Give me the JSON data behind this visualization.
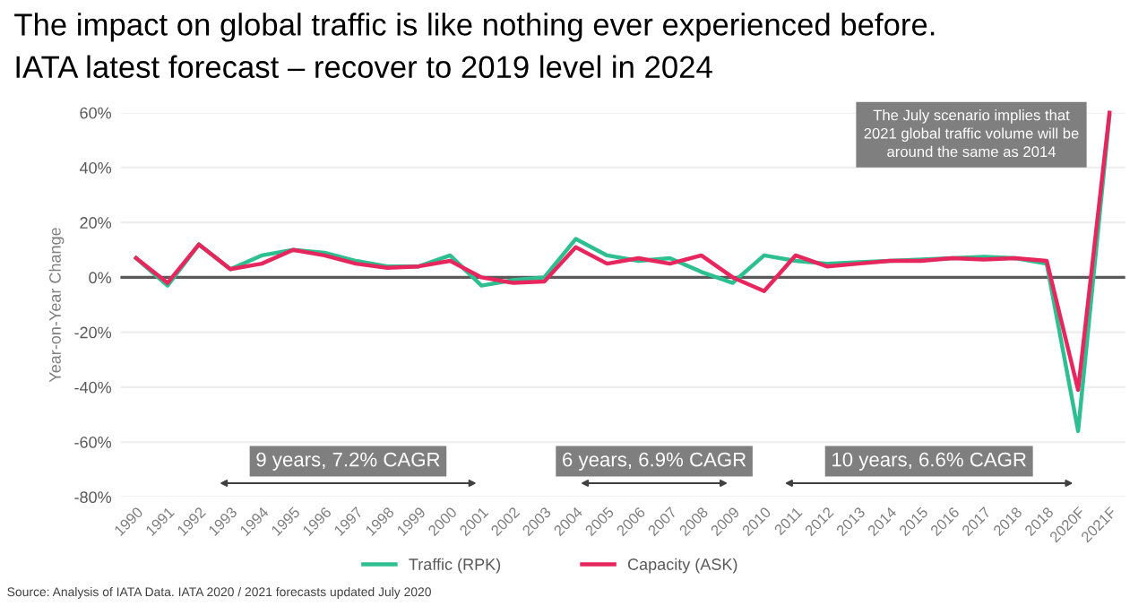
{
  "chart_data": {
    "type": "line",
    "title": "The impact on global traffic is like nothing ever experienced before.",
    "subtitle": "IATA latest forecast – recover to 2019 level in 2024",
    "ylabel": "Year-on-Year Change",
    "categories": [
      "1990",
      "1991",
      "1992",
      "1993",
      "1994",
      "1995",
      "1996",
      "1997",
      "1998",
      "1999",
      "2000",
      "2001",
      "2002",
      "2003",
      "2004",
      "2005",
      "2006",
      "2007",
      "2008",
      "2009",
      "2010",
      "2011",
      "2012",
      "2013",
      "2014",
      "2015",
      "2016",
      "2017",
      "2018",
      "2018",
      "2020F",
      "2021F"
    ],
    "series": [
      {
        "name": "Traffic (RPK)",
        "color": "#2ebf91",
        "values": [
          7,
          -3,
          12,
          3,
          8,
          10,
          9,
          6,
          4,
          4,
          8,
          -3,
          -1,
          0,
          14,
          8,
          6,
          7,
          2,
          -2,
          8,
          6,
          5,
          5.5,
          6,
          6.5,
          7,
          7.5,
          7,
          5,
          -56,
          59
        ]
      },
      {
        "name": "Capacity (ASK)",
        "color": "#e8265e",
        "values": [
          7,
          -2,
          12,
          3,
          5,
          10,
          8,
          5,
          3.5,
          4,
          6,
          0,
          -2,
          -1.5,
          11,
          5,
          7,
          5,
          8,
          0,
          -5,
          8,
          4,
          5,
          6,
          6,
          7,
          6.5,
          7,
          6,
          -41,
          60
        ]
      }
    ],
    "ylim": [
      -80,
      60
    ],
    "yticks": [
      {
        "value": -80,
        "label": "-80%"
      },
      {
        "value": -60,
        "label": "-60%"
      },
      {
        "value": -40,
        "label": "-40%"
      },
      {
        "value": -20,
        "label": "-20%"
      },
      {
        "value": 0,
        "label": "0%"
      },
      {
        "value": 20,
        "label": "20%"
      },
      {
        "value": 40,
        "label": "40%"
      },
      {
        "value": 60,
        "label": "60%"
      }
    ],
    "grid": "y",
    "legend": "bottom",
    "line_style": "solid",
    "marker": "none",
    "ref_lines": [
      {
        "axis": "y",
        "value": 0,
        "color": "#595959"
      }
    ],
    "annotations": [
      "9 years, 7.2% CAGR",
      "6 years, 6.9% CAGR",
      "10 years, 6.6% CAGR",
      "The July scenario implies that\n2021 global traffic volume will be\naround the same as 2014",
      "Source: Analysis of IATA Data. IATA 2020 / 2021 forecasts updated July 2020"
    ]
  }
}
